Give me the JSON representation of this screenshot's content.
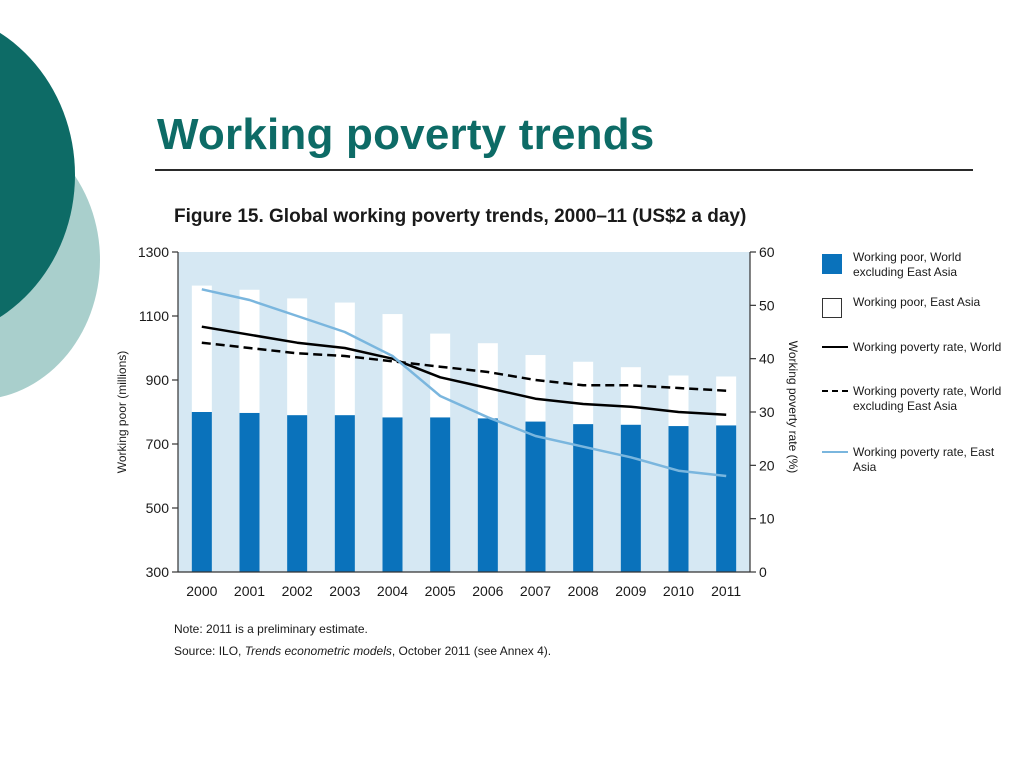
{
  "slide": {
    "title": "Working poverty trends"
  },
  "figure": {
    "caption": "Figure 15. Global working poverty trends, 2000–11 (US$2 a day)",
    "note": "Note: 2011 is a preliminary estimate.",
    "source_prefix": "Source: ILO, ",
    "source_italic": "Trends econometric models",
    "source_suffix": ", October 2011 (see Annex 4)."
  },
  "colors": {
    "title": "#0d6b66",
    "plot_background": "#d6e8f3",
    "bar_world_excl_east_asia": "#0a72bb",
    "bar_east_asia": "#ffffff",
    "line_world": "#000000",
    "line_world_excl_east_asia": "#000000",
    "line_east_asia": "#7ab6de"
  },
  "chart_data": {
    "type": "bar",
    "title": "Global working poverty trends, 2000–11 (US$2 a day)",
    "categories": [
      "2000",
      "2001",
      "2002",
      "2003",
      "2004",
      "2005",
      "2006",
      "2007",
      "2008",
      "2009",
      "2010",
      "2011"
    ],
    "ylabel": "Working poor (millions)",
    "ylim": [
      300,
      1300
    ],
    "yticks": [
      "1300",
      "1100",
      "900",
      "700",
      "500",
      "300"
    ],
    "y2label": "Working poverty rate (%)",
    "y2lim": [
      0,
      60
    ],
    "y2ticks": [
      "60",
      "50",
      "40",
      "30",
      "20",
      "10",
      "0"
    ],
    "stacked": true,
    "bar_series": [
      {
        "name": "Working poor, World excluding East Asia",
        "values": [
          800,
          797,
          790,
          790,
          783,
          783,
          780,
          770,
          762,
          760,
          756,
          758
        ]
      },
      {
        "name": "Working poor, East Asia",
        "values": [
          395,
          385,
          365,
          352,
          323,
          262,
          235,
          208,
          195,
          180,
          158,
          153
        ]
      }
    ],
    "line_series": [
      {
        "name": "Working poverty rate, World",
        "style": "solid",
        "values": [
          46,
          44.5,
          43,
          42,
          40,
          36.5,
          34.5,
          32.5,
          31.5,
          31,
          30,
          29.5
        ]
      },
      {
        "name": "Working poverty rate, World excluding East Asia",
        "style": "dashed",
        "values": [
          43,
          42,
          41,
          40.5,
          39.5,
          38.5,
          37.5,
          36,
          35,
          35,
          34.5,
          34
        ]
      },
      {
        "name": "Working poverty rate, East Asia",
        "style": "solid-light",
        "values": [
          53,
          51,
          48,
          45,
          40.5,
          33,
          29,
          25.5,
          23.5,
          21.5,
          19,
          18
        ]
      }
    ],
    "legend_position": "right"
  },
  "legend": {
    "items": [
      {
        "label": "Working poor, World excluding East Asia",
        "icon": "filled-blue-square"
      },
      {
        "label": "Working poor, East Asia",
        "icon": "white-square"
      },
      {
        "label": "Working poverty rate, World",
        "icon": "solid-black-line"
      },
      {
        "label": "Working poverty rate, World excluding East Asia",
        "icon": "dashed-black-line"
      },
      {
        "label": "Working poverty rate, East Asia",
        "icon": "solid-light-blue-line"
      }
    ]
  }
}
